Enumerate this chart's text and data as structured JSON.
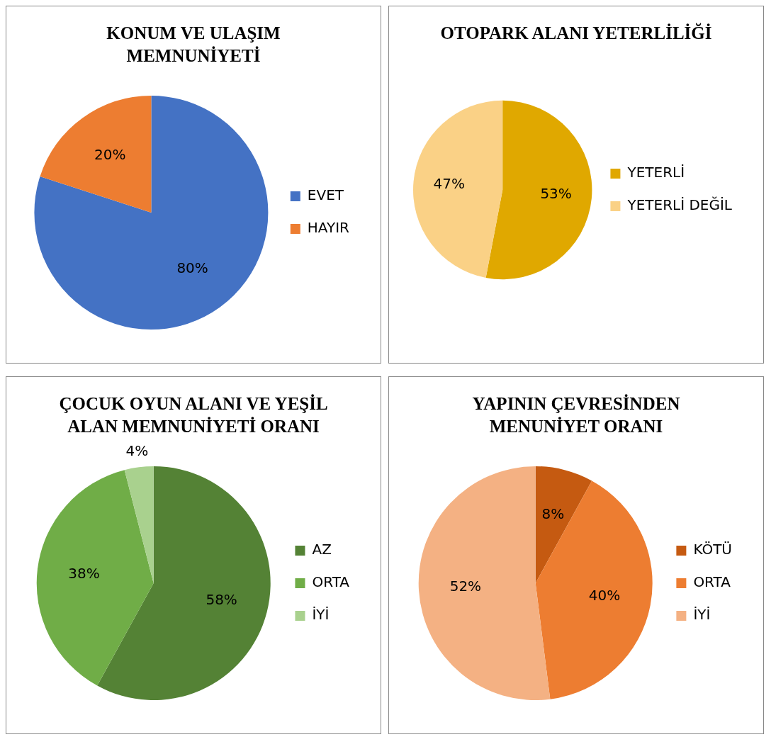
{
  "chart_data": [
    {
      "type": "pie",
      "title": "KONUM VE ULAŞIM MEMNUNİYETİ",
      "categories": [
        "EVET",
        "HAYIR"
      ],
      "values": [
        80,
        20
      ],
      "value_labels": [
        "80%",
        "20%"
      ],
      "colors": [
        "#4472c4",
        "#ed7d31"
      ],
      "legend": "right"
    },
    {
      "type": "pie",
      "title": "OTOPARK ALANI YETERLİLİĞİ",
      "categories": [
        "YETERLİ",
        "YETERLİ DEĞİL"
      ],
      "values": [
        53,
        47
      ],
      "value_labels": [
        "53%",
        "47%"
      ],
      "colors": [
        "#e0a800",
        "#fad186"
      ],
      "legend": "right"
    },
    {
      "type": "pie",
      "title": "ÇOCUK OYUN ALANI VE YEŞİL ALAN MEMNUNİYETİ ORANI",
      "categories": [
        "AZ",
        "ORTA",
        "İYİ"
      ],
      "values": [
        58,
        38,
        4
      ],
      "value_labels": [
        "58%",
        "38%",
        "4%"
      ],
      "colors": [
        "#548235",
        "#70ad47",
        "#a9d18e"
      ],
      "legend": "right"
    },
    {
      "type": "pie",
      "title": "YAPININ ÇEVRESİNDEN MENUNİYET ORANI",
      "categories": [
        "KÖTÜ",
        "ORTA",
        "İYİ"
      ],
      "values": [
        8,
        40,
        52
      ],
      "value_labels": [
        "8%",
        "40%",
        "52%"
      ],
      "colors": [
        "#c55a11",
        "#ed7d31",
        "#f4b183"
      ],
      "legend": "right"
    }
  ]
}
